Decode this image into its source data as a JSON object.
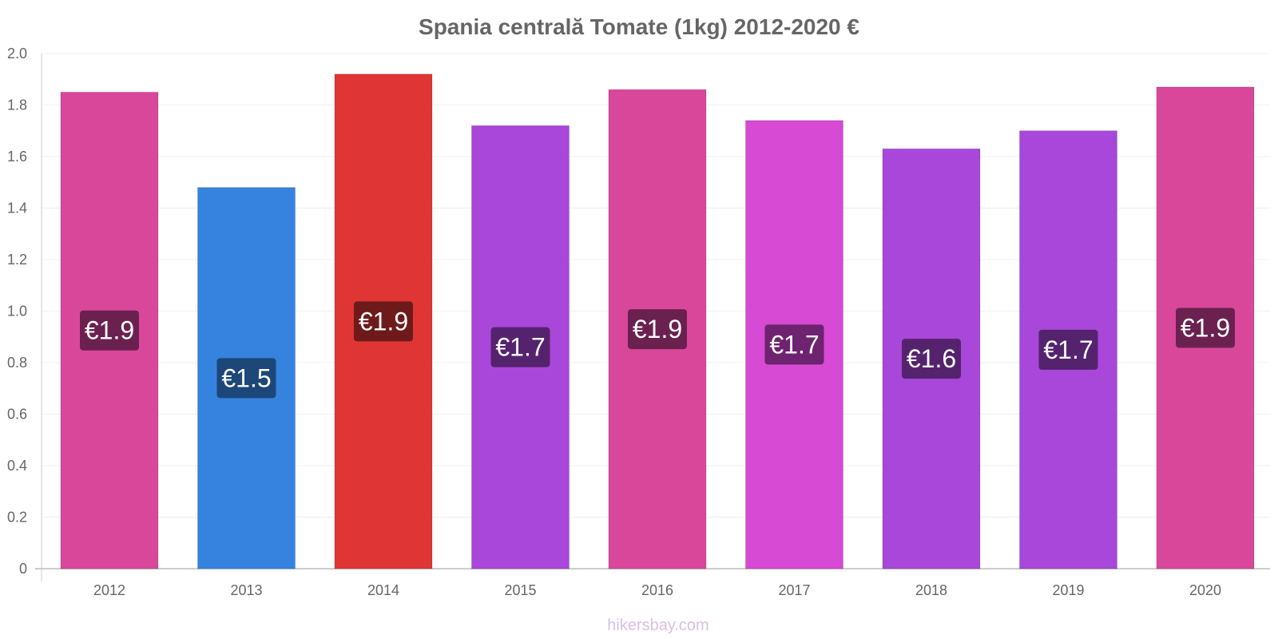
{
  "chart_data": {
    "type": "bar",
    "title": "Spania centrală Tomate (1kg) 2012-2020 €",
    "xlabel": "",
    "ylabel": "",
    "ylim": [
      0,
      2.0
    ],
    "yticks": [
      0,
      0.2,
      0.4,
      0.6,
      0.8,
      1.0,
      1.2,
      1.4,
      1.6,
      1.8,
      2.0
    ],
    "ytick_labels": [
      "0",
      "0.2",
      "0.4",
      "0.6",
      "0.8",
      "1.0",
      "1.2",
      "1.4",
      "1.6",
      "1.8",
      "2.0"
    ],
    "categories": [
      "2012",
      "2013",
      "2014",
      "2015",
      "2016",
      "2017",
      "2018",
      "2019",
      "2020"
    ],
    "values": [
      1.85,
      1.48,
      1.92,
      1.72,
      1.86,
      1.74,
      1.63,
      1.7,
      1.87
    ],
    "value_labels": [
      "€1.9",
      "€1.5",
      "€1.9",
      "€1.7",
      "€1.9",
      "€1.7",
      "€1.6",
      "€1.7",
      "€1.9"
    ],
    "bar_colors": [
      "#d9479b",
      "#3583de",
      "#e03535",
      "#a847d9",
      "#d9479b",
      "#d64ad4",
      "#a847d9",
      "#a847d9",
      "#d9479b"
    ],
    "label_colors": [
      "#6b2150",
      "#1d4778",
      "#6e1a1a",
      "#55236e",
      "#6b2150",
      "#6e2370",
      "#55236e",
      "#55236e",
      "#6b2150"
    ],
    "grid": true,
    "legend": "none"
  },
  "credit": "hikersbay.com"
}
